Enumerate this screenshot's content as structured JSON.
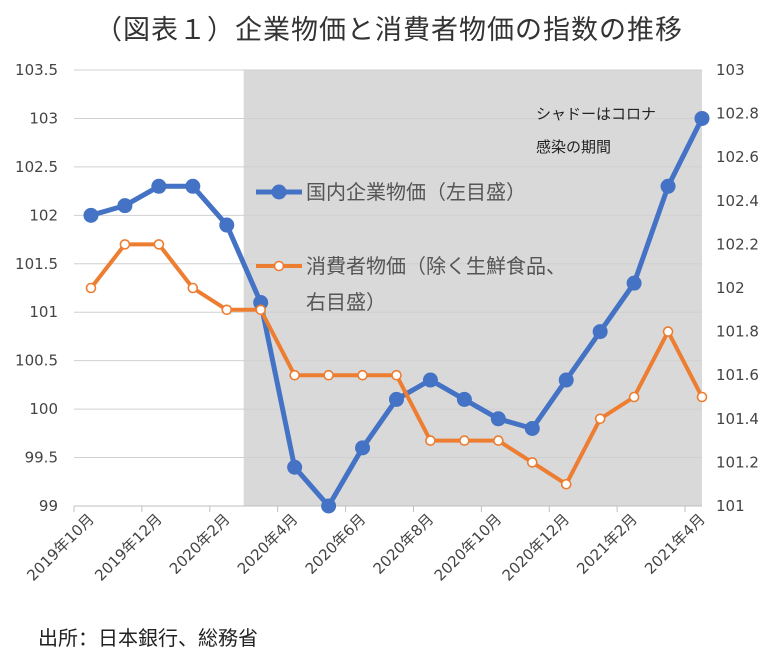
{
  "page": {
    "title": "（図表１）企業物価と消費者物価の指数の推移",
    "source": "出所：日本銀行、総務省"
  },
  "chart_data": {
    "type": "line",
    "title": "（図表１）企業物価と消費者物価の指数の推移",
    "x": [
      "2019年10月",
      "2019年11月",
      "2019年12月",
      "2020年1月",
      "2020年2月",
      "2020年3月",
      "2020年4月",
      "2020年5月",
      "2020年6月",
      "2020年7月",
      "2020年8月",
      "2020年9月",
      "2020年10月",
      "2020年11月",
      "2020年12月",
      "2021年1月",
      "2021年2月",
      "2021年3月",
      "2021年4月"
    ],
    "x_tick_labels": [
      "2019年10月",
      "2019年12月",
      "2020年2月",
      "2020年4月",
      "2020年6月",
      "2020年8月",
      "2020年10月",
      "2020年12月",
      "2021年2月",
      "2021年4月"
    ],
    "x_tick_indices": [
      0,
      2,
      4,
      6,
      8,
      10,
      12,
      14,
      16,
      18
    ],
    "y_left": {
      "ylim": [
        99,
        103.5
      ],
      "ticks": [
        "99",
        "99.5",
        "100",
        "100.5",
        "101",
        "101.5",
        "102",
        "102.5",
        "103",
        "103.5"
      ]
    },
    "y_right": {
      "ylim": [
        101,
        103
      ],
      "ticks": [
        "101",
        "101.2",
        "101.4",
        "101.6",
        "101.8",
        "102",
        "102.2",
        "102.4",
        "102.6",
        "102.8",
        "103"
      ]
    },
    "series": [
      {
        "name": "国内企業物価（左目盛）",
        "axis": "left",
        "color": "#4472C4",
        "marker": "filled-circle",
        "values": [
          102.0,
          102.1,
          102.3,
          102.3,
          101.9,
          101.1,
          99.4,
          99.0,
          99.6,
          100.1,
          100.3,
          100.1,
          99.9,
          99.8,
          100.3,
          100.8,
          101.3,
          102.3,
          103.0
        ]
      },
      {
        "name": "消費者物価（除く生鮮食品、右目盛）",
        "legend_lines": [
          "消費者物価（除く生鮮食品、",
          "右目盛）"
        ],
        "axis": "right",
        "color": "#ED7D31",
        "marker": "hollow-circle",
        "values": [
          102.0,
          102.2,
          102.2,
          102.0,
          101.9,
          101.9,
          101.6,
          101.6,
          101.6,
          101.6,
          101.3,
          101.3,
          101.3,
          101.2,
          101.1,
          101.4,
          101.5,
          101.8,
          101.5
        ]
      }
    ],
    "shaded_region": {
      "from_index": 4.5,
      "to_index": 18.5,
      "color": "#D9D9D9",
      "label_lines": [
        "シャドーはコロナ",
        "感染の期間"
      ]
    },
    "legend": "inside-center",
    "grid": true
  }
}
